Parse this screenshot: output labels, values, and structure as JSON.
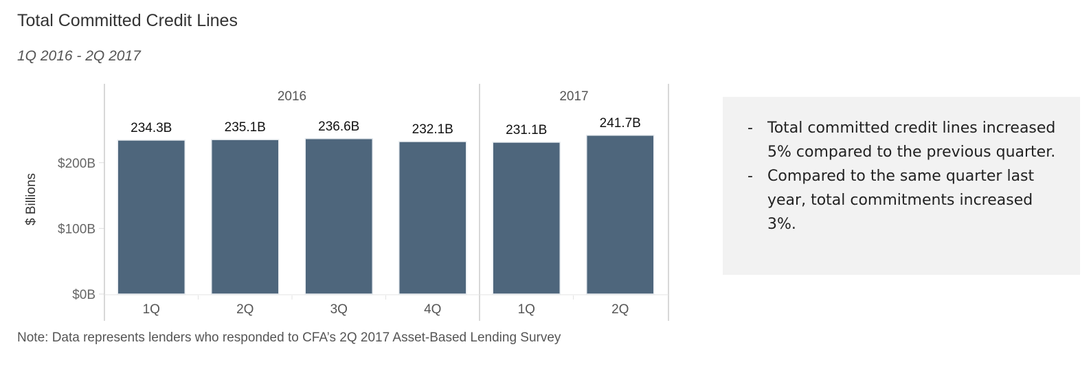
{
  "title": "Total Committed Credit Lines",
  "subtitle": "1Q 2016 - 2Q 2017",
  "note": "Note: Data represents lenders who responded to CFA’s 2Q 2017 Asset-Based Lending Survey",
  "callout": {
    "items": [
      "Total committed credit lines increased 5% compared to the previous quarter.",
      "Compared to the same quarter last year, total commitments increased 3%."
    ]
  },
  "chart_data": {
    "type": "bar",
    "groups": [
      {
        "label": "2016",
        "categories": [
          "1Q",
          "2Q",
          "3Q",
          "4Q"
        ]
      },
      {
        "label": "2017",
        "categories": [
          "1Q",
          "2Q"
        ]
      }
    ],
    "values": [
      234.3,
      235.1,
      236.6,
      232.1,
      231.1,
      241.7
    ],
    "data_labels": [
      "234.3B",
      "235.1B",
      "236.6B",
      "232.1B",
      "231.1B",
      "241.7B"
    ],
    "ylabel": "$ Billions",
    "yticks": [
      0,
      100,
      200
    ],
    "ytick_labels": [
      "$0B",
      "$100B",
      "$200B"
    ],
    "ylim": [
      0,
      320
    ],
    "grid": false,
    "bar_color": "#4e667c"
  }
}
